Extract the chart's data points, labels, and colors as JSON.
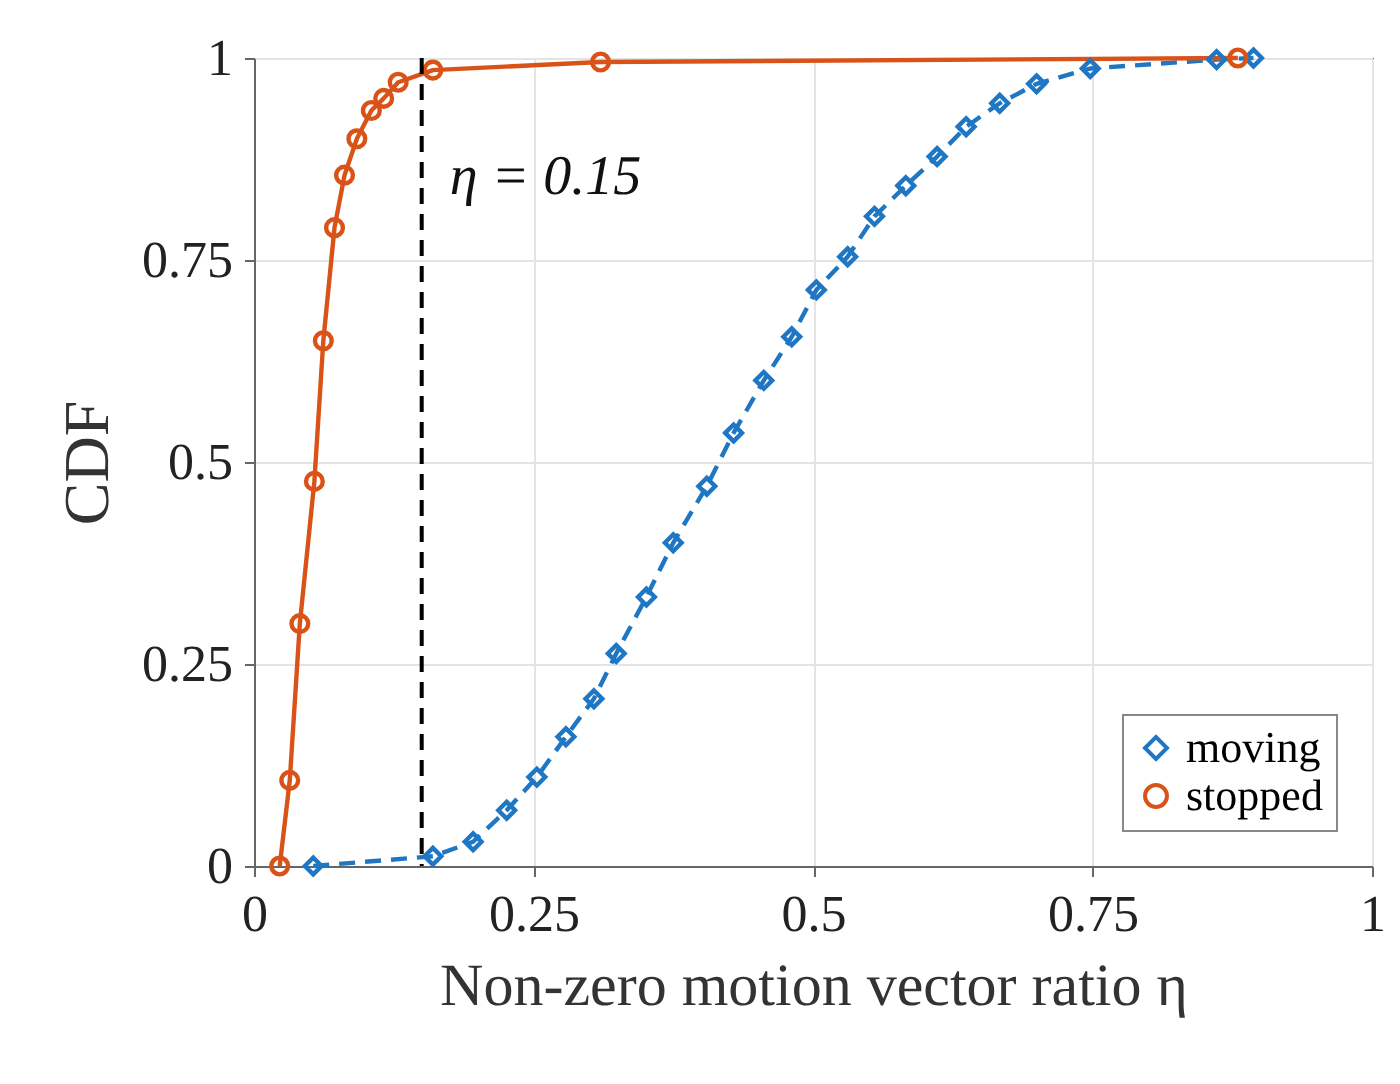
{
  "chart_data": {
    "type": "line",
    "xlabel": "Non-zero motion vector ratio η",
    "ylabel": "CDF",
    "xlim": [
      0,
      1
    ],
    "xticks": [
      0,
      0.25,
      0.5,
      0.75,
      1
    ],
    "ylim": [
      0,
      1
    ],
    "yticks": [
      0,
      0.25,
      0.5,
      0.75,
      1
    ],
    "grid": true,
    "legend": "bottom right",
    "ref_lines": [
      {
        "axis": "x",
        "value": 0.15,
        "label": "η = 0.15",
        "color": "#000000",
        "line_style": "dashed"
      }
    ],
    "series": [
      {
        "name": "moving",
        "color": "#1f77c4",
        "marker": "diamond",
        "line_style": "dashed",
        "x": [
          0.053,
          0.16,
          0.196,
          0.226,
          0.253,
          0.279,
          0.304,
          0.324,
          0.351,
          0.375,
          0.405,
          0.429,
          0.456,
          0.481,
          0.503,
          0.531,
          0.555,
          0.583,
          0.611,
          0.637,
          0.667,
          0.7,
          0.748,
          0.861,
          0.894
        ],
        "values": [
          0,
          0.012,
          0.03,
          0.069,
          0.11,
          0.16,
          0.207,
          0.263,
          0.333,
          0.4,
          0.47,
          0.536,
          0.601,
          0.655,
          0.713,
          0.754,
          0.804,
          0.842,
          0.878,
          0.915,
          0.944,
          0.968,
          0.987,
          0.998,
          1
        ]
      },
      {
        "name": "stopped",
        "color": "#d95319",
        "marker": "circle",
        "line_style": "solid",
        "x": [
          0.023,
          0.032,
          0.041,
          0.054,
          0.062,
          0.072,
          0.081,
          0.092,
          0.105,
          0.116,
          0.129,
          0.16,
          0.31,
          0.88
        ],
        "values": [
          0,
          0.106,
          0.3,
          0.476,
          0.65,
          0.79,
          0.855,
          0.9,
          0.935,
          0.95,
          0.97,
          0.985,
          0.995,
          1
        ]
      }
    ]
  }
}
